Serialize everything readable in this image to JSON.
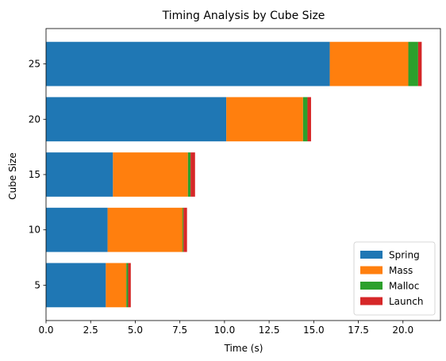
{
  "chart_data": {
    "type": "bar",
    "orientation": "horizontal",
    "stacked": true,
    "title": "Timing Analysis by Cube Size",
    "xlabel": "Time (s)",
    "ylabel": "Cube Size",
    "categories": [
      "5",
      "10",
      "15",
      "20",
      "25"
    ],
    "category_values": [
      5,
      10,
      15,
      20,
      25
    ],
    "xlim": [
      0,
      22.1
    ],
    "ylim": [
      1.8,
      28.2
    ],
    "xticks": [
      "0.0",
      "2.5",
      "5.0",
      "7.5",
      "10.0",
      "12.5",
      "15.0",
      "17.5",
      "20.0"
    ],
    "xtick_values": [
      0,
      2.5,
      5,
      7.5,
      10,
      12.5,
      15,
      17.5,
      20
    ],
    "yticks": [
      "5",
      "10",
      "15",
      "20",
      "25"
    ],
    "bar_height": 4,
    "grid": false,
    "legend_position": "lower right",
    "series": [
      {
        "name": "Spring",
        "color": "#1f77b4",
        "values": [
          3.35,
          3.45,
          3.75,
          10.1,
          15.9
        ]
      },
      {
        "name": "Mass",
        "color": "#ff7f0e",
        "values": [
          1.15,
          4.2,
          4.2,
          4.3,
          4.4
        ]
      },
      {
        "name": "Malloc",
        "color": "#2ca02c",
        "values": [
          0.1,
          0.05,
          0.15,
          0.25,
          0.55
        ]
      },
      {
        "name": "Launch",
        "color": "#d62728",
        "values": [
          0.15,
          0.2,
          0.25,
          0.2,
          0.2
        ]
      }
    ]
  }
}
